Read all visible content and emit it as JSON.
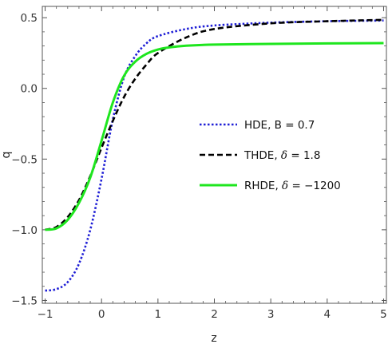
{
  "chart_data": {
    "type": "line",
    "xlabel": "z",
    "ylabel": "q",
    "xlim": [
      -1.05,
      5.05
    ],
    "ylim": [
      -1.52,
      0.58
    ],
    "xticks": [
      -1,
      0,
      1,
      2,
      3,
      4,
      5
    ],
    "xtick_labels": [
      "−1",
      "0",
      "1",
      "2",
      "3",
      "4",
      "5"
    ],
    "yticks": [
      -1.5,
      -1.0,
      -0.5,
      0.0,
      0.5
    ],
    "ytick_labels": [
      "−1.5",
      "−1.0",
      "−0.5",
      "0.0",
      "0.5"
    ],
    "grid": false,
    "legend_position": "center-right",
    "series": [
      {
        "name": "HDE, B = 0.7",
        "legend_prefix": "HDE, B = 0.7",
        "legend_symbol": "",
        "legend_value": "",
        "color": "#1f1fd6",
        "dash": "dotted",
        "x": [
          -1.0,
          -0.8,
          -0.6,
          -0.4,
          -0.2,
          0.0,
          0.2,
          0.4,
          0.6,
          0.8,
          1.0,
          1.5,
          2.0,
          3.0,
          4.0,
          5.0
        ],
        "y": [
          -1.43,
          -1.42,
          -1.37,
          -1.24,
          -1.0,
          -0.64,
          -0.22,
          0.08,
          0.23,
          0.32,
          0.37,
          0.42,
          0.445,
          0.465,
          0.475,
          0.48
        ]
      },
      {
        "name": "THDE, δ = 1.8",
        "legend_prefix": "THDE, ",
        "legend_symbol": "δ",
        "legend_value": " = 1.8",
        "color": "#000000",
        "dash": "dashed",
        "x": [
          -1.0,
          -0.8,
          -0.6,
          -0.4,
          -0.2,
          0.0,
          0.2,
          0.4,
          0.6,
          0.8,
          1.0,
          1.5,
          2.0,
          3.0,
          4.0,
          5.0
        ],
        "y": [
          -1.0,
          -0.98,
          -0.91,
          -0.79,
          -0.62,
          -0.42,
          -0.23,
          -0.06,
          0.07,
          0.17,
          0.25,
          0.36,
          0.42,
          0.46,
          0.475,
          0.485
        ]
      },
      {
        "name": "RHDE, δ = −1200",
        "legend_prefix": "RHDE, ",
        "legend_symbol": "δ",
        "legend_value": " = −1200",
        "color": "#1ee61e",
        "dash": "solid",
        "x": [
          -1.0,
          -0.8,
          -0.6,
          -0.4,
          -0.2,
          0.0,
          0.2,
          0.4,
          0.6,
          0.8,
          1.0,
          1.2,
          1.5,
          2.0,
          3.0,
          4.0,
          5.0
        ],
        "y": [
          -1.0,
          -0.99,
          -0.93,
          -0.81,
          -0.63,
          -0.37,
          -0.1,
          0.09,
          0.19,
          0.245,
          0.275,
          0.29,
          0.302,
          0.31,
          0.315,
          0.318,
          0.32
        ]
      }
    ]
  }
}
